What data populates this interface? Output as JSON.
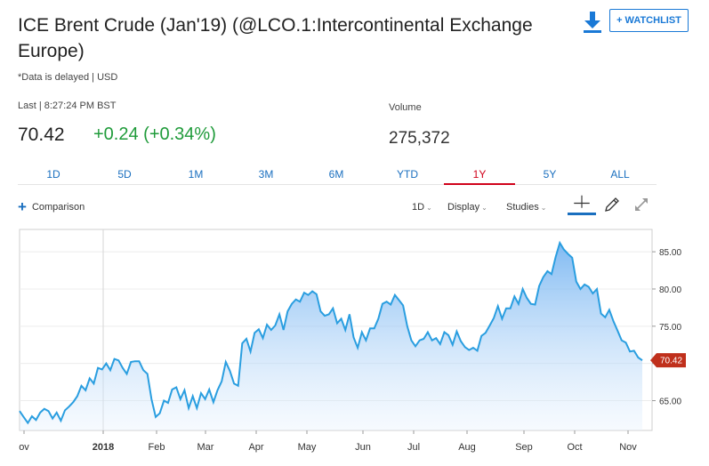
{
  "header": {
    "title": "ICE Brent Crude (Jan'19) (@LCO.1:Intercontinental Exchange Europe)",
    "delayed_note": "*Data is delayed | USD",
    "watchlist_label": "+ WATCHLIST"
  },
  "quote": {
    "last_label": "Last | 8:27:24 PM BST",
    "last_price": "70.42",
    "change": "+0.24 (+0.34%)",
    "volume_label": "Volume",
    "volume_value": "275,372"
  },
  "ranges": {
    "items": [
      "1D",
      "5D",
      "1M",
      "3M",
      "6M",
      "YTD",
      "1Y",
      "5Y",
      "ALL"
    ],
    "active": "1Y"
  },
  "toolbar": {
    "comparison_label": "Comparison",
    "interval_label": "1D",
    "display_label": "Display",
    "studies_label": "Studies"
  },
  "colors": {
    "accent": "#1a79d6",
    "positive": "#1f9b3a",
    "active_tab": "#d0021b",
    "line": "#2a9ee0",
    "price_tag": "#c0301c"
  },
  "icons": [
    "download-icon",
    "plus-icon",
    "chevron-down-icon",
    "crosshair-icon",
    "pencil-icon",
    "expand-icon"
  ],
  "chart_data": {
    "type": "area",
    "x_tick_labels": [
      "ov",
      "2018",
      "Feb",
      "Mar",
      "Apr",
      "May",
      "Jun",
      "Jul",
      "Aug",
      "Sep",
      "Oct",
      "Nov"
    ],
    "y_ticks": [
      "65.00",
      "70.00",
      "75.00",
      "80.00",
      "85.00"
    ],
    "ylim": [
      61,
      88
    ],
    "last_value_label": "70.42",
    "grid": true,
    "values": [
      63.6,
      62.8,
      62.0,
      62.9,
      62.4,
      63.4,
      63.9,
      63.6,
      62.6,
      63.4,
      62.3,
      63.7,
      64.2,
      64.8,
      65.6,
      67.0,
      66.4,
      68.0,
      67.3,
      69.4,
      69.2,
      70.0,
      69.1,
      70.6,
      70.4,
      69.4,
      68.6,
      70.2,
      70.3,
      70.3,
      69.1,
      68.6,
      65.2,
      62.8,
      63.3,
      65.0,
      64.7,
      66.5,
      66.8,
      65.2,
      66.4,
      64.0,
      65.6,
      64.0,
      66.0,
      65.2,
      66.5,
      64.8,
      66.4,
      67.6,
      70.2,
      69.0,
      67.3,
      67.0,
      72.7,
      73.3,
      71.6,
      74.1,
      74.6,
      73.4,
      75.2,
      74.5,
      75.1,
      76.6,
      74.5,
      77.0,
      78.0,
      78.6,
      78.3,
      79.5,
      79.2,
      79.7,
      79.3,
      77.0,
      76.4,
      76.6,
      77.4,
      75.4,
      76.0,
      74.5,
      76.6,
      73.5,
      72.1,
      74.2,
      73.1,
      74.7,
      74.7,
      76.0,
      78.0,
      78.3,
      77.9,
      79.2,
      78.5,
      77.8,
      75.0,
      73.1,
      72.3,
      73.1,
      73.3,
      74.2,
      73.1,
      73.4,
      72.6,
      74.2,
      73.8,
      72.5,
      74.3,
      73.0,
      72.2,
      71.8,
      72.1,
      71.7,
      73.7,
      74.1,
      75.1,
      76.1,
      77.7,
      76.0,
      77.4,
      77.4,
      79.0,
      78.0,
      80.0,
      78.8,
      78.0,
      77.9,
      80.4,
      81.6,
      82.4,
      82.0,
      84.3,
      86.2,
      85.3,
      84.7,
      84.2,
      81.0,
      80.0,
      80.6,
      80.3,
      79.4,
      80.0,
      76.7,
      76.2,
      77.2,
      75.7,
      74.4,
      73.1,
      72.8,
      71.6,
      71.7,
      70.8,
      70.42
    ]
  }
}
